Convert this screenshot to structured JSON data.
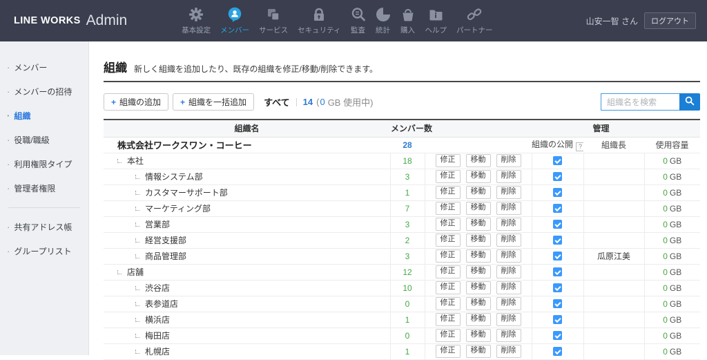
{
  "colors": {
    "header_bg": "#3a3e4e",
    "nav_active_blue": "#2ba2e0",
    "accent_blue": "#2e7ad0",
    "sidebar_active_blue": "#2e7ae0",
    "count_green": "#43a843",
    "checkbox_blue": "#3b99fc",
    "search_button_blue": "#1b7fd6"
  },
  "header": {
    "brand": "LINE WORKS",
    "brand_suffix": "Admin",
    "nav": [
      {
        "id": "basic-settings",
        "label": "基本設定",
        "icon": "gear-icon",
        "active": false
      },
      {
        "id": "members",
        "label": "メンバー",
        "icon": "member-icon",
        "active": true
      },
      {
        "id": "services",
        "label": "サービス",
        "icon": "services-icon",
        "active": false
      },
      {
        "id": "security",
        "label": "セキュリティ",
        "icon": "lock-icon",
        "active": false
      },
      {
        "id": "audit",
        "label": "監査",
        "icon": "audit-magnifier-icon",
        "active": false
      },
      {
        "id": "statistics",
        "label": "統計",
        "icon": "pie-chart-icon",
        "active": false
      },
      {
        "id": "purchase",
        "label": "購入",
        "icon": "basket-icon",
        "active": false
      },
      {
        "id": "help",
        "label": "ヘルプ",
        "icon": "help-folder-icon",
        "active": false
      },
      {
        "id": "partner",
        "label": "パートナー",
        "icon": "link-icon",
        "active": false
      }
    ],
    "user_name": "山安一智 さん",
    "logout_label": "ログアウト"
  },
  "sidebar": {
    "items": [
      {
        "id": "members",
        "label": "メンバー",
        "active": false
      },
      {
        "id": "member-invite",
        "label": "メンバーの招待",
        "active": false
      },
      {
        "id": "organization",
        "label": "組織",
        "active": true
      },
      {
        "id": "roles",
        "label": "役職/職級",
        "active": false
      },
      {
        "id": "permission-type",
        "label": "利用権限タイプ",
        "active": false
      },
      {
        "id": "admin-rights",
        "label": "管理者権限",
        "active": false
      },
      {
        "id": "shared-address-book",
        "label": "共有アドレス帳",
        "active": false,
        "divider_before": true
      },
      {
        "id": "group-list",
        "label": "グループリスト",
        "active": false
      }
    ]
  },
  "page": {
    "title": "組織",
    "description": "新しく組織を追加したり、既存の組織を修正/移動/削除できます。"
  },
  "toolbar": {
    "plus": "+",
    "add_org": "組織の追加",
    "bulk_add": "組織を一括追加",
    "summary_label": "すべて",
    "count": "14",
    "usage_open": "(",
    "usage_value": "0",
    "usage_rest": "GB 使用中)",
    "search_placeholder": "組織名を検索"
  },
  "table": {
    "columns": {
      "name": "組織名",
      "members": "メンバー数",
      "manage": "管理"
    },
    "subheader": {
      "publish": "組織の公開",
      "publish_help": "?",
      "leader": "組織長",
      "capacity": "使用容量"
    },
    "company": {
      "name": "株式会社ワークスワン・コーヒー",
      "members": "28"
    },
    "action_labels": {
      "edit": "修正",
      "move": "移動",
      "delete": "削除"
    },
    "capacity_unit": "GB",
    "rows": [
      {
        "name": "本社",
        "level": 1,
        "members": "18",
        "leader": "",
        "capacity": "0"
      },
      {
        "name": "情報システム部",
        "level": 2,
        "members": "3",
        "leader": "",
        "capacity": "0"
      },
      {
        "name": "カスタマーサポート部",
        "level": 2,
        "members": "1",
        "leader": "",
        "capacity": "0"
      },
      {
        "name": "マーケティング部",
        "level": 2,
        "members": "7",
        "leader": "",
        "capacity": "0"
      },
      {
        "name": "営業部",
        "level": 2,
        "members": "3",
        "leader": "",
        "capacity": "0"
      },
      {
        "name": "経営支援部",
        "level": 2,
        "members": "2",
        "leader": "",
        "capacity": "0"
      },
      {
        "name": "商品管理部",
        "level": 2,
        "members": "3",
        "leader": "瓜原江美",
        "capacity": "0"
      },
      {
        "name": "店舗",
        "level": 1,
        "members": "12",
        "leader": "",
        "capacity": "0"
      },
      {
        "name": "渋谷店",
        "level": 2,
        "members": "10",
        "leader": "",
        "capacity": "0"
      },
      {
        "name": "表参道店",
        "level": 2,
        "members": "0",
        "leader": "",
        "capacity": "0"
      },
      {
        "name": "横浜店",
        "level": 2,
        "members": "1",
        "leader": "",
        "capacity": "0"
      },
      {
        "name": "梅田店",
        "level": 2,
        "members": "0",
        "leader": "",
        "capacity": "0"
      },
      {
        "name": "札幌店",
        "level": 2,
        "members": "1",
        "leader": "",
        "capacity": "0"
      }
    ]
  }
}
